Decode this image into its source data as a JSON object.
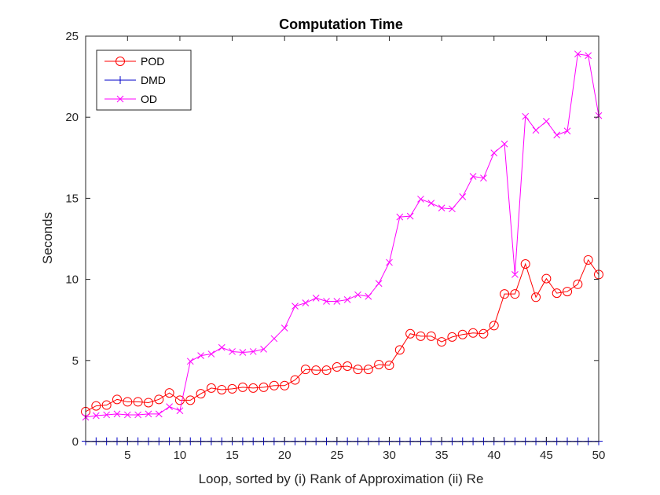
{
  "chart_data": {
    "type": "line",
    "title": "Computation Time",
    "xlabel": "Loop, sorted by (i) Rank of Approximation (ii) Re",
    "ylabel": "Seconds",
    "xlim": [
      1,
      50
    ],
    "ylim": [
      0,
      25
    ],
    "xticks": [
      5,
      10,
      15,
      20,
      25,
      30,
      35,
      40,
      45,
      50
    ],
    "yticks": [
      0,
      5,
      10,
      15,
      20,
      25
    ],
    "grid": false,
    "legend_position": "top-left",
    "x": [
      1,
      2,
      3,
      4,
      5,
      6,
      7,
      8,
      9,
      10,
      11,
      12,
      13,
      14,
      15,
      16,
      17,
      18,
      19,
      20,
      21,
      22,
      23,
      24,
      25,
      26,
      27,
      28,
      29,
      30,
      31,
      32,
      33,
      34,
      35,
      36,
      37,
      38,
      39,
      40,
      41,
      42,
      43,
      44,
      45,
      46,
      47,
      48,
      49,
      50
    ],
    "series": [
      {
        "name": "POD",
        "color": "#ff0000",
        "marker": "circle",
        "values": [
          1.85,
          2.2,
          2.25,
          2.6,
          2.45,
          2.45,
          2.4,
          2.6,
          3.0,
          2.55,
          2.55,
          2.95,
          3.3,
          3.2,
          3.25,
          3.35,
          3.3,
          3.35,
          3.45,
          3.45,
          3.8,
          4.45,
          4.4,
          4.4,
          4.6,
          4.65,
          4.45,
          4.45,
          4.75,
          4.7,
          5.65,
          6.65,
          6.5,
          6.5,
          6.15,
          6.45,
          6.6,
          6.7,
          6.65,
          7.15,
          9.1,
          9.1,
          10.95,
          8.9,
          10.05,
          9.15,
          9.25,
          9.7,
          11.2,
          10.3
        ]
      },
      {
        "name": "DMD",
        "color": "#0000c8",
        "marker": "plus",
        "values": [
          0.02,
          0.02,
          0.02,
          0.02,
          0.02,
          0.02,
          0.02,
          0.02,
          0.02,
          0.02,
          0.02,
          0.02,
          0.02,
          0.02,
          0.02,
          0.02,
          0.02,
          0.02,
          0.02,
          0.02,
          0.02,
          0.02,
          0.02,
          0.02,
          0.02,
          0.02,
          0.02,
          0.02,
          0.02,
          0.02,
          0.02,
          0.02,
          0.02,
          0.02,
          0.02,
          0.02,
          0.02,
          0.02,
          0.02,
          0.02,
          0.02,
          0.02,
          0.02,
          0.02,
          0.02,
          0.02,
          0.02,
          0.02,
          0.02,
          0.02
        ]
      },
      {
        "name": "OD",
        "color": "#ff00ff",
        "marker": "x",
        "values": [
          1.5,
          1.6,
          1.65,
          1.7,
          1.65,
          1.65,
          1.7,
          1.7,
          2.15,
          1.9,
          4.95,
          5.3,
          5.4,
          5.8,
          5.55,
          5.5,
          5.55,
          5.7,
          6.35,
          7.0,
          8.35,
          8.55,
          8.85,
          8.65,
          8.65,
          8.75,
          9.05,
          8.95,
          9.75,
          11.05,
          13.85,
          13.9,
          14.95,
          14.7,
          14.4,
          14.35,
          15.1,
          16.35,
          16.25,
          17.8,
          18.35,
          10.3,
          20.05,
          19.2,
          19.75,
          18.9,
          19.15,
          23.9,
          23.8,
          20.1
        ]
      }
    ]
  }
}
